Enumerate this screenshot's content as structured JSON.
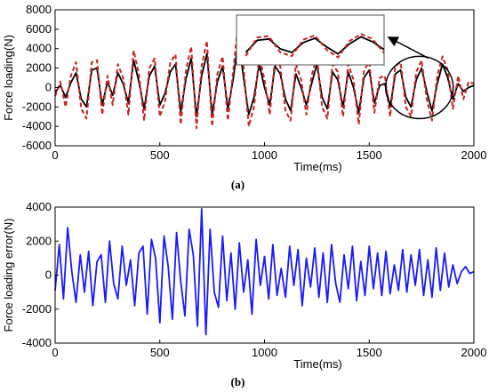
{
  "chart_data": [
    {
      "type": "line",
      "panel": "a",
      "caption": "(a)",
      "xlabel": "Time(ms)",
      "ylabel": "Force loading(N)",
      "xlim": [
        0,
        2000
      ],
      "ylim": [
        -6000,
        8000
      ],
      "xticks": [
        0,
        500,
        1000,
        1500,
        2000
      ],
      "yticks": [
        -6000,
        -4000,
        -2000,
        0,
        2000,
        4000,
        6000,
        8000
      ],
      "grid": false,
      "inset": "zoomed view of 1580–1900 ms shown in a boxed inset at top, with an ellipse and arrow",
      "series": [
        {
          "color": "#000000",
          "style": "solid",
          "x": [
            0,
            25,
            50,
            75,
            100,
            125,
            150,
            175,
            200,
            225,
            250,
            275,
            300,
            325,
            350,
            375,
            400,
            425,
            450,
            475,
            500,
            525,
            550,
            575,
            600,
            625,
            650,
            675,
            700,
            725,
            750,
            775,
            800,
            825,
            850,
            875,
            900,
            925,
            950,
            975,
            1000,
            1025,
            1050,
            1075,
            1100,
            1125,
            1150,
            1175,
            1200,
            1225,
            1250,
            1275,
            1300,
            1325,
            1350,
            1375,
            1400,
            1425,
            1450,
            1475,
            1500,
            1525,
            1550,
            1575,
            1600,
            1625,
            1650,
            1675,
            1700,
            1725,
            1750,
            1775,
            1800,
            1825,
            1850,
            1875,
            1900,
            1925,
            1950,
            1975,
            2000
          ],
          "y": [
            -500,
            200,
            -1000,
            500,
            1500,
            -1200,
            -2000,
            1800,
            2000,
            -1800,
            600,
            -800,
            1500,
            400,
            -1600,
            2800,
            600,
            -2200,
            1200,
            2200,
            -1800,
            -600,
            1600,
            2400,
            -2500,
            900,
            3000,
            -3000,
            1200,
            3500,
            -2800,
            600,
            2200,
            -2200,
            800,
            5000,
            1000,
            -2800,
            -1000,
            2400,
            0,
            -1800,
            2200,
            1400,
            -1200,
            -2400,
            1400,
            0,
            -1800,
            400,
            2400,
            -1000,
            -2200,
            1600,
            800,
            -2000,
            1600,
            0,
            -2600,
            1000,
            1800,
            -1600,
            200,
            400,
            -2000,
            1400,
            1800,
            -1000,
            -2000,
            800,
            2000,
            -400,
            -2400,
            400,
            2400,
            1000,
            -1200,
            400,
            -400,
            0,
            200
          ]
        },
        {
          "color": "#cc2222",
          "style": "dashed",
          "x": [
            0,
            25,
            50,
            75,
            100,
            125,
            150,
            175,
            200,
            225,
            250,
            275,
            300,
            325,
            350,
            375,
            400,
            425,
            450,
            475,
            500,
            525,
            550,
            575,
            600,
            625,
            650,
            675,
            700,
            725,
            750,
            775,
            800,
            825,
            850,
            875,
            900,
            925,
            950,
            975,
            1000,
            1025,
            1050,
            1075,
            1100,
            1125,
            1150,
            1175,
            1200,
            1225,
            1250,
            1275,
            1300,
            1325,
            1350,
            1375,
            1400,
            1425,
            1450,
            1475,
            1500,
            1525,
            1550,
            1575,
            1600,
            1625,
            1650,
            1675,
            1700,
            1725,
            1750,
            1775,
            1800,
            1825,
            1850,
            1875,
            1900,
            1925,
            1950,
            1975,
            2000
          ],
          "y": [
            -900,
            600,
            -2000,
            1200,
            2600,
            -2200,
            -3200,
            2600,
            2800,
            -2800,
            1200,
            -1800,
            2400,
            1000,
            -2800,
            3800,
            1400,
            -3400,
            2000,
            3000,
            -3000,
            -1400,
            2600,
            3400,
            -3800,
            1800,
            4200,
            -4200,
            2200,
            4800,
            -4000,
            1400,
            3200,
            -3400,
            1600,
            6800,
            2000,
            -4000,
            -2000,
            3200,
            800,
            -2800,
            3000,
            2200,
            -2400,
            -3400,
            2400,
            800,
            -2800,
            1200,
            3200,
            -2000,
            -3200,
            2400,
            1600,
            -3000,
            2400,
            800,
            -3800,
            1800,
            2600,
            -2600,
            1000,
            1200,
            -3000,
            2200,
            2600,
            -2000,
            -3000,
            1600,
            2800,
            -1200,
            -3400,
            1200,
            3200,
            1800,
            -2200,
            1200,
            -1200,
            600,
            400
          ]
        }
      ]
    },
    {
      "type": "line",
      "panel": "b",
      "caption": "(b)",
      "xlabel": "Time(ms)",
      "ylabel": "Force loading error(N)",
      "xlim": [
        0,
        2000
      ],
      "ylim": [
        -4000,
        4000
      ],
      "xticks": [
        0,
        500,
        1000,
        1500,
        2000
      ],
      "yticks": [
        -4000,
        -2000,
        0,
        2000,
        4000
      ],
      "grid": false,
      "series": [
        {
          "color": "#1a1aff",
          "style": "solid",
          "x": [
            0,
            20,
            40,
            60,
            80,
            100,
            120,
            140,
            160,
            180,
            200,
            220,
            240,
            260,
            280,
            300,
            320,
            340,
            360,
            380,
            400,
            420,
            440,
            460,
            480,
            500,
            520,
            540,
            560,
            580,
            600,
            620,
            640,
            660,
            680,
            700,
            720,
            740,
            760,
            780,
            800,
            820,
            840,
            860,
            880,
            900,
            920,
            940,
            960,
            980,
            1000,
            1020,
            1040,
            1060,
            1080,
            1100,
            1120,
            1140,
            1160,
            1180,
            1200,
            1220,
            1240,
            1260,
            1280,
            1300,
            1320,
            1340,
            1360,
            1380,
            1400,
            1420,
            1440,
            1460,
            1480,
            1500,
            1520,
            1540,
            1560,
            1580,
            1600,
            1620,
            1640,
            1660,
            1680,
            1700,
            1720,
            1740,
            1760,
            1780,
            1800,
            1820,
            1840,
            1860,
            1880,
            1900,
            1920,
            1940,
            1960,
            1980,
            2000
          ],
          "y": [
            -900,
            1800,
            -1400,
            2800,
            200,
            -1600,
            1200,
            -1000,
            1400,
            -1800,
            800,
            1200,
            -1600,
            2000,
            -500,
            -1400,
            1700,
            -600,
            900,
            -1800,
            1300,
            1700,
            -2300,
            2100,
            1000,
            -2800,
            2300,
            500,
            -2600,
            2500,
            -400,
            -2400,
            2700,
            1200,
            -3000,
            3900,
            -3500,
            2700,
            -1000,
            -1900,
            2300,
            -1500,
            1300,
            -2000,
            1900,
            -1000,
            900,
            -2300,
            2100,
            -600,
            1100,
            -1400,
            1800,
            -1200,
            400,
            -1300,
            1700,
            -600,
            1500,
            -1800,
            1000,
            -700,
            1600,
            -1300,
            1300,
            -1600,
            1800,
            -500,
            -1600,
            1200,
            -800,
            1700,
            -1500,
            800,
            -1200,
            1700,
            -800,
            1300,
            -1200,
            1400,
            -1100,
            600,
            -900,
            1500,
            -1000,
            1200,
            -600,
            1500,
            -1200,
            900,
            -1300,
            1600,
            -900,
            1300,
            -700,
            600,
            -500,
            200,
            500,
            100,
            200
          ]
        }
      ]
    }
  ]
}
